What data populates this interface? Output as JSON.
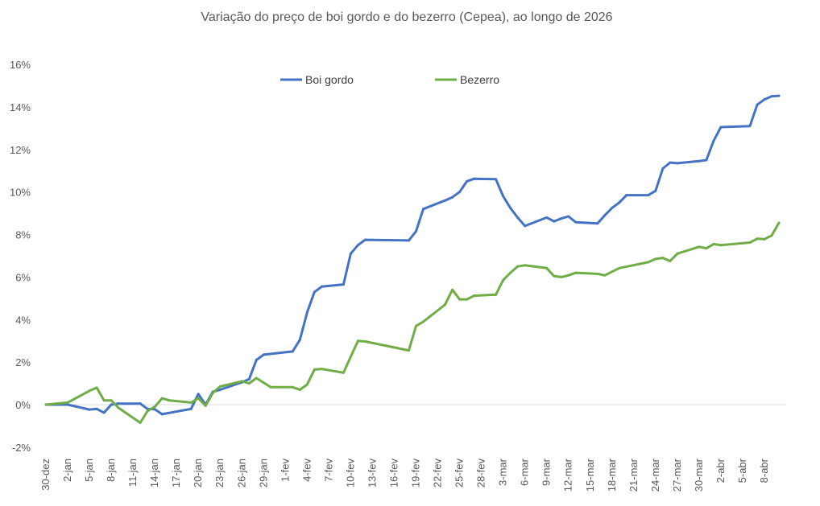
{
  "chart_data": {
    "type": "line",
    "title": "Variação do preço de boi gordo  e do bezerro (Cepea), ao longo de 2026",
    "xlabel": "",
    "ylabel": "",
    "ylim": [
      -2,
      16
    ],
    "y_ticks": [
      "-2%",
      "0%",
      "2%",
      "4%",
      "6%",
      "8%",
      "10%",
      "12%",
      "14%",
      "16%"
    ],
    "x_ticks": [
      "30-dez",
      "2-jan",
      "5-jan",
      "8-jan",
      "11-jan",
      "14-jan",
      "17-jan",
      "20-jan",
      "23-jan",
      "26-jan",
      "29-jan",
      "1-fev",
      "4-fev",
      "7-fev",
      "10-fev",
      "13-fev",
      "16-fev",
      "19-fev",
      "22-fev",
      "25-fev",
      "28-fev",
      "3-mar",
      "6-mar",
      "9-mar",
      "12-mar",
      "15-mar",
      "18-mar",
      "21-mar",
      "24-mar",
      "27-mar",
      "30-mar",
      "2-abr",
      "5-abr",
      "8-abr"
    ],
    "grid": false,
    "legend_position": "top",
    "series": [
      {
        "name": "Boi gordo",
        "color": "#4472C4",
        "points": [
          [
            "30-dez",
            0
          ],
          [
            "2-jan",
            0
          ],
          [
            "5-jan",
            -0.23
          ],
          [
            "6-jan",
            -0.2
          ],
          [
            "7-jan",
            -0.38
          ],
          [
            "8-jan",
            0
          ],
          [
            "9-jan",
            0.05
          ],
          [
            "12-jan",
            0.05
          ],
          [
            "13-jan",
            -0.2
          ],
          [
            "14-jan",
            -0.22
          ],
          [
            "15-jan",
            -0.45
          ],
          [
            "19-jan",
            -0.2
          ],
          [
            "20-jan",
            0.5
          ],
          [
            "21-jan",
            0
          ],
          [
            "22-jan",
            0.6
          ],
          [
            "23-jan",
            0.7
          ],
          [
            "26-jan",
            1.05
          ],
          [
            "27-jan",
            1.2
          ],
          [
            "28-jan",
            2.1
          ],
          [
            "29-jan",
            2.35
          ],
          [
            "2-fev",
            2.5
          ],
          [
            "3-fev",
            3.05
          ],
          [
            "4-fev",
            4.35
          ],
          [
            "5-fev",
            5.3
          ],
          [
            "6-fev",
            5.55
          ],
          [
            "9-fev",
            5.65
          ],
          [
            "10-fev",
            7.1
          ],
          [
            "11-fev",
            7.5
          ],
          [
            "12-fev",
            7.75
          ],
          [
            "18-fev",
            7.72
          ],
          [
            "19-fev",
            8.15
          ],
          [
            "20-fev",
            9.2
          ],
          [
            "23-fev",
            9.6
          ],
          [
            "24-fev",
            9.75
          ],
          [
            "25-fev",
            10.0
          ],
          [
            "26-fev",
            10.5
          ],
          [
            "27-fev",
            10.62
          ],
          [
            "2-mar",
            10.6
          ],
          [
            "3-mar",
            9.8
          ],
          [
            "4-mar",
            9.25
          ],
          [
            "5-mar",
            8.8
          ],
          [
            "6-mar",
            8.4
          ],
          [
            "9-mar",
            8.8
          ],
          [
            "10-mar",
            8.62
          ],
          [
            "11-mar",
            8.75
          ],
          [
            "12-mar",
            8.85
          ],
          [
            "13-mar",
            8.58
          ],
          [
            "16-mar",
            8.52
          ],
          [
            "17-mar",
            8.9
          ],
          [
            "18-mar",
            9.25
          ],
          [
            "19-mar",
            9.5
          ],
          [
            "20-mar",
            9.85
          ],
          [
            "23-mar",
            9.85
          ],
          [
            "24-mar",
            10.05
          ],
          [
            "25-mar",
            11.1
          ],
          [
            "26-mar",
            11.38
          ],
          [
            "27-mar",
            11.35
          ],
          [
            "30-mar",
            11.45
          ],
          [
            "31-mar",
            11.5
          ],
          [
            "1-abr",
            12.4
          ],
          [
            "2-abr",
            13.05
          ],
          [
            "6-abr",
            13.1
          ],
          [
            "7-abr",
            14.1
          ],
          [
            "8-abr",
            14.35
          ],
          [
            "9-abr",
            14.5
          ],
          [
            "10-abr",
            14.52
          ]
        ]
      },
      {
        "name": "Bezerro",
        "color": "#70AD47",
        "points": [
          [
            "30-dez",
            0
          ],
          [
            "2-jan",
            0.1
          ],
          [
            "5-jan",
            0.65
          ],
          [
            "6-jan",
            0.8
          ],
          [
            "7-jan",
            0.2
          ],
          [
            "8-jan",
            0.2
          ],
          [
            "9-jan",
            -0.15
          ],
          [
            "12-jan",
            -0.85
          ],
          [
            "13-jan",
            -0.3
          ],
          [
            "14-jan",
            -0.1
          ],
          [
            "15-jan",
            0.3
          ],
          [
            "16-jan",
            0.2
          ],
          [
            "19-jan",
            0.1
          ],
          [
            "20-jan",
            0.3
          ],
          [
            "21-jan",
            -0.05
          ],
          [
            "22-jan",
            0.55
          ],
          [
            "23-jan",
            0.85
          ],
          [
            "26-jan",
            1.1
          ],
          [
            "27-jan",
            1.0
          ],
          [
            "28-jan",
            1.25
          ],
          [
            "30-jan",
            0.82
          ],
          [
            "2-fev",
            0.82
          ],
          [
            "3-fev",
            0.7
          ],
          [
            "4-fev",
            0.95
          ],
          [
            "5-fev",
            1.65
          ],
          [
            "6-fev",
            1.68
          ],
          [
            "9-fev",
            1.5
          ],
          [
            "11-fev",
            3.0
          ],
          [
            "12-fev",
            2.97
          ],
          [
            "18-fev",
            2.55
          ],
          [
            "19-fev",
            3.7
          ],
          [
            "20-fev",
            3.9
          ],
          [
            "23-fev",
            4.7
          ],
          [
            "24-fev",
            5.4
          ],
          [
            "25-fev",
            4.95
          ],
          [
            "26-fev",
            4.95
          ],
          [
            "27-fev",
            5.12
          ],
          [
            "2-mar",
            5.17
          ],
          [
            "3-mar",
            5.85
          ],
          [
            "4-mar",
            6.2
          ],
          [
            "5-mar",
            6.5
          ],
          [
            "6-mar",
            6.55
          ],
          [
            "9-mar",
            6.42
          ],
          [
            "10-mar",
            6.05
          ],
          [
            "11-mar",
            6.0
          ],
          [
            "12-mar",
            6.08
          ],
          [
            "13-mar",
            6.2
          ],
          [
            "16-mar",
            6.15
          ],
          [
            "17-mar",
            6.08
          ],
          [
            "18-mar",
            6.25
          ],
          [
            "19-mar",
            6.42
          ],
          [
            "23-mar",
            6.7
          ],
          [
            "24-mar",
            6.85
          ],
          [
            "25-mar",
            6.9
          ],
          [
            "26-mar",
            6.75
          ],
          [
            "27-mar",
            7.1
          ],
          [
            "30-mar",
            7.42
          ],
          [
            "31-mar",
            7.35
          ],
          [
            "1-abr",
            7.55
          ],
          [
            "2-abr",
            7.5
          ],
          [
            "6-abr",
            7.62
          ],
          [
            "7-abr",
            7.8
          ],
          [
            "8-abr",
            7.78
          ],
          [
            "9-abr",
            7.95
          ],
          [
            "10-abr",
            8.55
          ]
        ]
      }
    ]
  }
}
